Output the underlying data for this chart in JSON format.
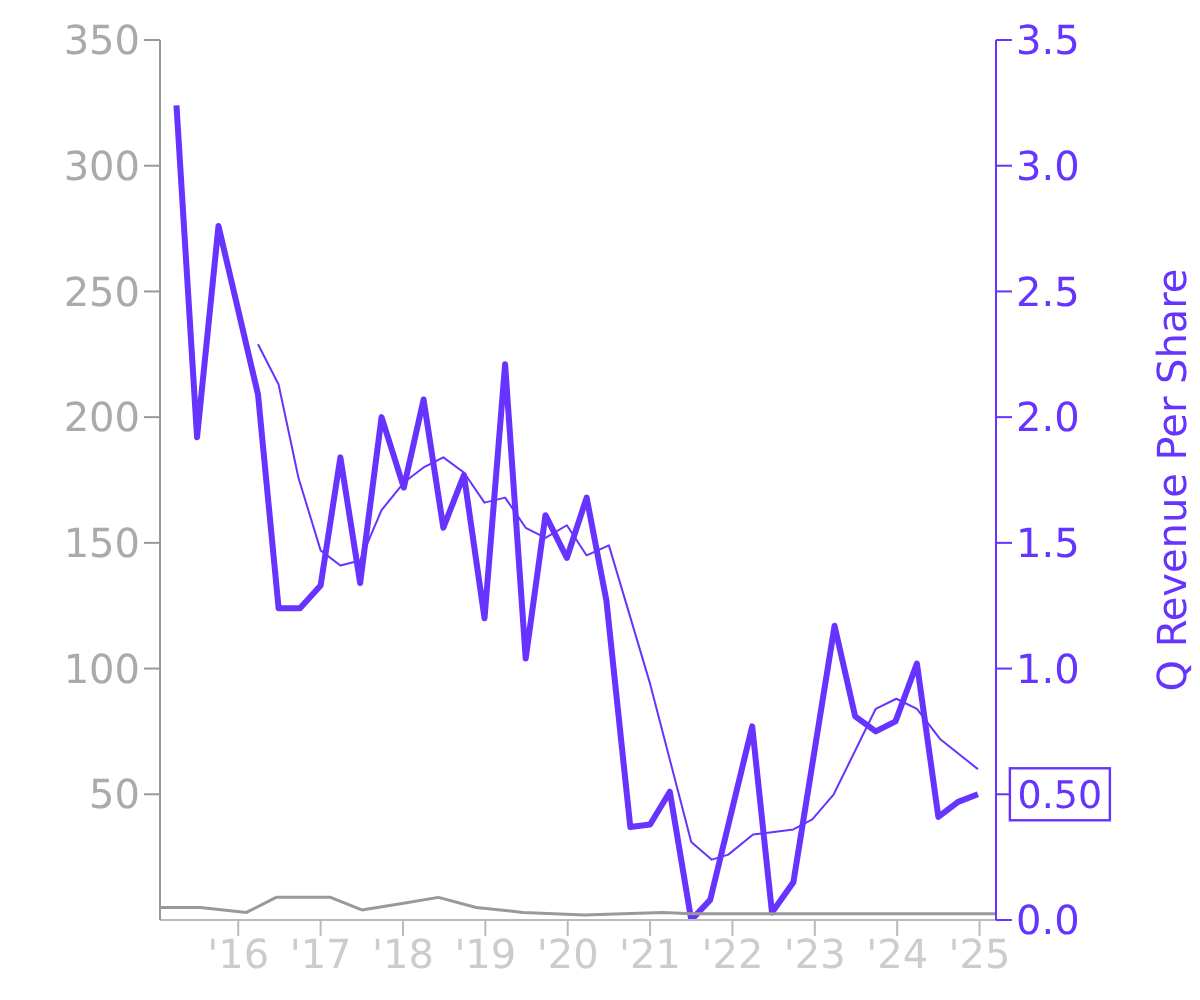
{
  "chart_data": {
    "type": "line",
    "y2label": "Q Revenue Per Share",
    "xlim": [
      2015.05,
      2025.2
    ],
    "xticks": [
      {
        "value": 2016,
        "label": "'16"
      },
      {
        "value": 2017,
        "label": "'17"
      },
      {
        "value": 2018,
        "label": "'18"
      },
      {
        "value": 2019,
        "label": "'19"
      },
      {
        "value": 2020,
        "label": "'20"
      },
      {
        "value": 2021,
        "label": "'21"
      },
      {
        "value": 2022,
        "label": "'22"
      },
      {
        "value": 2023,
        "label": "'23"
      },
      {
        "value": 2024,
        "label": "'24"
      },
      {
        "value": 2025,
        "label": "'25"
      }
    ],
    "ylim": [
      0,
      350
    ],
    "yticks": [
      50,
      100,
      150,
      200,
      250,
      300,
      350
    ],
    "y2lim": [
      0,
      3.5
    ],
    "y2ticks": [
      {
        "value": 0,
        "label": "0.0"
      },
      {
        "value": 0.5,
        "label": null
      },
      {
        "value": 1,
        "label": "1.0"
      },
      {
        "value": 1.5,
        "label": "1.5"
      },
      {
        "value": 2,
        "label": "2.0"
      },
      {
        "value": 2.5,
        "label": "2.5"
      },
      {
        "value": 3,
        "label": "3.0"
      },
      {
        "value": 3.5,
        "label": "3.5"
      }
    ],
    "grid": false,
    "legend": false,
    "marker": "none",
    "annotations": [
      {
        "text": "0.50",
        "x": 2024.98,
        "y": 0.5
      }
    ],
    "series": [
      {
        "color": "#6633ff",
        "axis": "y2",
        "x": [
          2015.25,
          2015.5,
          2015.76,
          2016.24,
          2016.49,
          2016.75,
          2017.0,
          2017.24,
          2017.48,
          2017.74,
          2018.01,
          2018.25,
          2018.49,
          2018.74,
          2018.99,
          2019.24,
          2019.49,
          2019.73,
          2019.99,
          2020.23,
          2020.47,
          2020.76,
          2021.0,
          2021.24,
          2021.5,
          2021.73,
          2022.24,
          2022.48,
          2022.74,
          2023.24,
          2023.49,
          2023.74,
          2023.98,
          2024.24,
          2024.5,
          2024.74,
          2024.98
        ],
        "values": [
          3.24,
          1.92,
          2.76,
          2.09,
          1.24,
          1.24,
          1.33,
          1.84,
          1.34,
          2.0,
          1.72,
          2.07,
          1.56,
          1.77,
          1.2,
          2.21,
          1.04,
          1.61,
          1.44,
          1.68,
          1.27,
          0.37,
          0.38,
          0.51,
          0.0,
          0.08,
          0.77,
          0.03,
          0.15,
          1.17,
          0.81,
          0.75,
          0.79,
          1.02,
          0.41,
          0.47,
          0.5
        ]
      },
      {
        "color": "#6633ff",
        "axis": "y2",
        "x": [
          2016.24,
          2016.49,
          2016.73,
          2017.0,
          2017.24,
          2017.48,
          2017.74,
          2018.01,
          2018.25,
          2018.49,
          2018.74,
          2018.99,
          2019.24,
          2019.49,
          2019.73,
          2019.99,
          2020.23,
          2020.5,
          2021.0,
          2021.5,
          2021.75,
          2021.95,
          2022.25,
          2022.74,
          2022.97,
          2023.23,
          2023.74,
          2023.99,
          2024.24,
          2024.52,
          2024.98
        ],
        "values": [
          2.29,
          2.13,
          1.76,
          1.47,
          1.41,
          1.43,
          1.63,
          1.74,
          1.8,
          1.84,
          1.78,
          1.66,
          1.68,
          1.56,
          1.52,
          1.57,
          1.45,
          1.49,
          0.94,
          0.31,
          0.24,
          0.26,
          0.34,
          0.36,
          0.4,
          0.5,
          0.84,
          0.88,
          0.84,
          0.72,
          0.6
        ]
      },
      {
        "color": "#999999",
        "axis": "y",
        "x": [
          2015.05,
          2015.54,
          2016.1,
          2016.46,
          2017.12,
          2017.5,
          2017.97,
          2018.43,
          2018.89,
          2019.46,
          2020.2,
          2021.15,
          2021.51,
          2022.46,
          2023.38,
          2025.2
        ],
        "values": [
          5,
          5,
          3,
          9,
          9,
          4,
          6.5,
          9,
          5,
          3,
          2,
          3,
          2.5,
          2.5,
          2.5,
          2.5
        ]
      }
    ]
  }
}
